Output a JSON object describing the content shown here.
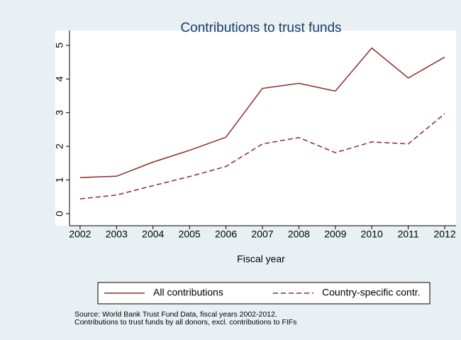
{
  "chart_data": {
    "type": "line",
    "title": "Contributions to trust funds",
    "x_label": "Fiscal year",
    "x": [
      2002,
      2003,
      2004,
      2005,
      2006,
      2007,
      2008,
      2009,
      2010,
      2011,
      2012
    ],
    "series": [
      {
        "name": "All contributions",
        "color": "#8c2a2a",
        "dash": "solid",
        "values": [
          1.07,
          1.11,
          1.53,
          1.88,
          2.27,
          3.72,
          3.87,
          3.64,
          4.92,
          4.03,
          4.65
        ]
      },
      {
        "name": "Country-specific contr.",
        "color": "#8c2a2a",
        "dash": "dashed",
        "values": [
          0.44,
          0.55,
          0.83,
          1.1,
          1.4,
          2.07,
          2.26,
          1.81,
          2.13,
          2.07,
          2.97
        ]
      }
    ],
    "xlim": [
      2001.71,
      2012.31
    ],
    "xticks": [
      2002,
      2003,
      2004,
      2005,
      2006,
      2007,
      2008,
      2009,
      2010,
      2011,
      2012
    ],
    "ylim": [
      -0.36,
      5.44
    ],
    "yticks": [
      0,
      1,
      2,
      3,
      4,
      5
    ],
    "grid": false,
    "legend": "bottom",
    "notes": [
      "Source: World Bank Trust Fund Data, fiscal years 2002-2012.",
      "Contributions to trust funds by all donors, excl. contributions to FIFs"
    ]
  }
}
